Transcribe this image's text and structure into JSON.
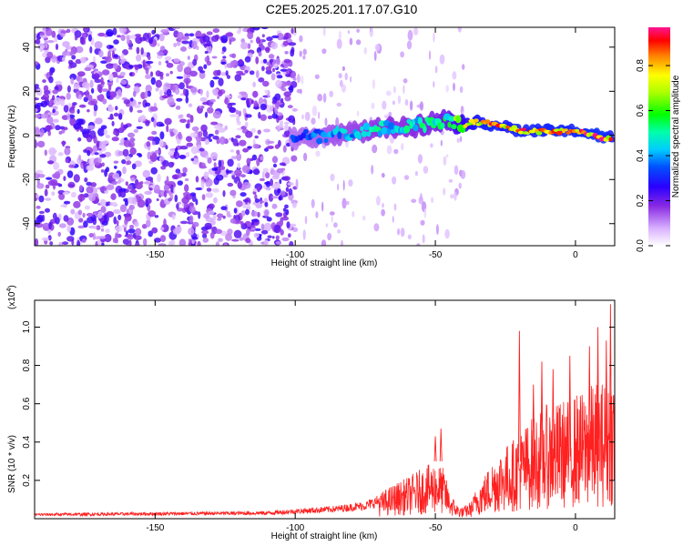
{
  "title": "C2E5.2025.201.17.07.G10",
  "chart_data": [
    {
      "type": "heatmap",
      "xlabel": "Height of straight line (km)",
      "ylabel": "Frequency (Hz)",
      "xlim": [
        -193,
        14
      ],
      "ylim": [
        -50,
        49
      ],
      "xticks": [
        -150,
        -100,
        -50,
        0
      ],
      "yticks": [
        -40,
        -20,
        0,
        20,
        40
      ],
      "colorbar": {
        "label": "Normalized spectral amplitude",
        "range": [
          0.0,
          0.97
        ],
        "ticks": [
          0.0,
          0.2,
          0.4,
          0.6,
          0.8
        ]
      },
      "ridge": {
        "x": [
          -100,
          -90,
          -80,
          -70,
          -60,
          -50,
          -45,
          -40,
          -35,
          -30,
          -25,
          -20,
          -15,
          -10,
          -5,
          0,
          5,
          10,
          13
        ],
        "freq": [
          -1,
          0,
          1,
          3,
          4,
          6,
          7,
          5,
          6,
          5,
          4,
          2,
          2,
          2,
          2,
          2,
          1,
          -1,
          -1
        ],
        "amplitude": [
          0.35,
          0.4,
          0.45,
          0.5,
          0.5,
          0.55,
          0.6,
          0.75,
          0.85,
          0.9,
          0.85,
          0.9,
          0.88,
          0.9,
          0.9,
          0.9,
          0.92,
          0.95,
          0.85
        ]
      }
    },
    {
      "type": "line",
      "xlabel": "Height of straight line (km)",
      "ylabel": "SNR (10 * v/v)",
      "y_multiplier": "(x10",
      "y_multiplier_exp": "4",
      "y_multiplier_close": ")",
      "xlim": [
        -193,
        14
      ],
      "ylim": [
        0,
        1.14
      ],
      "xticks": [
        -150,
        -100,
        -50,
        0
      ],
      "yticks": [
        0.2,
        0.4,
        0.6,
        0.8,
        1.0
      ],
      "color": "#ff2020",
      "envelope_x": [
        -193,
        -150,
        -110,
        -95,
        -85,
        -75,
        -70,
        -65,
        -60,
        -55,
        -50,
        -47,
        -45,
        -42,
        -40,
        -37,
        -35,
        -32,
        -30,
        -27,
        -25,
        -22,
        -20,
        -17,
        -15,
        -12,
        -10,
        -7,
        -5,
        -2,
        0,
        3,
        5,
        8,
        10,
        12,
        14
      ],
      "envelope_y": [
        0.025,
        0.03,
        0.035,
        0.05,
        0.06,
        0.08,
        0.11,
        0.15,
        0.18,
        0.22,
        0.25,
        0.22,
        0.12,
        0.06,
        0.05,
        0.08,
        0.15,
        0.2,
        0.25,
        0.3,
        0.32,
        0.35,
        0.38,
        0.42,
        0.45,
        0.48,
        0.5,
        0.5,
        0.52,
        0.52,
        0.55,
        0.55,
        0.58,
        0.6,
        0.6,
        0.65,
        0.65
      ],
      "spikes": [
        {
          "x": -50,
          "y": 0.43
        },
        {
          "x": -48,
          "y": 0.47
        },
        {
          "x": -20,
          "y": 0.98
        },
        {
          "x": -15,
          "y": 0.7
        },
        {
          "x": -12,
          "y": 0.82
        },
        {
          "x": -8,
          "y": 0.78
        },
        {
          "x": -2,
          "y": 0.85
        },
        {
          "x": 5,
          "y": 0.9
        },
        {
          "x": 8,
          "y": 1.0
        },
        {
          "x": 11,
          "y": 0.93
        },
        {
          "x": 12.5,
          "y": 1.12
        }
      ]
    }
  ]
}
